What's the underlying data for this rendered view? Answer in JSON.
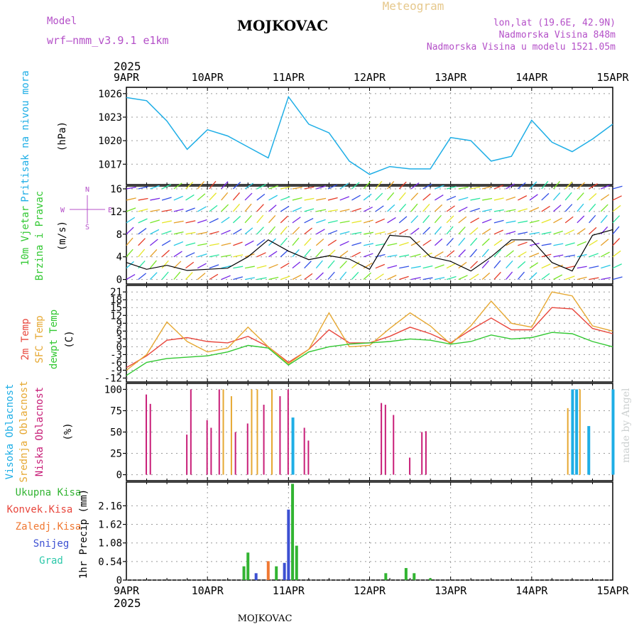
{
  "header": {
    "model_label": "Model",
    "model_name": "wrf—nmm_v3.9.1 e1km",
    "station_title": "MOJKOVAC",
    "meteogram_label": "Meteogram",
    "lonlat": "lon,lat (19.6E, 42.9N)",
    "elevation": "Nadmorska Visina 848m",
    "model_elevation": "Nadmorska Visina u modelu 1521.05m",
    "year": "2025",
    "footer_station": "MOJKOVAC",
    "watermark": "made by Angel"
  },
  "colors": {
    "pressure": "#1eaee6",
    "temp2m": "#e8463c",
    "sfc": "#e6a832",
    "dewpt": "#32c832",
    "high_cloud": "#1eaee6",
    "mid_cloud": "#e6a832",
    "low_cloud": "#c81e78",
    "total_precip": "#32b432",
    "conv_precip": "#e8463c",
    "frz_precip": "#f07832",
    "snow": "#3c50d2",
    "hail": "#2cc8aa",
    "wind_label": "#32c832",
    "compass": "#b450c8"
  },
  "chart_data": [
    {
      "type": "line",
      "panel": "pressure",
      "ylabel_side": "Pritisak na nivou mora",
      "ylabel": "(hPa)",
      "x_ticks": [
        "9APR",
        "10APR",
        "11APR",
        "12APR",
        "13APR",
        "14APR",
        "15APR"
      ],
      "yticks": [
        1017,
        1020,
        1023,
        1026
      ],
      "ylim": [
        1014.4,
        1026.8
      ],
      "series": [
        {
          "x": [
            0,
            0.25,
            0.5,
            0.75,
            1,
            1.25,
            1.5,
            1.75,
            2,
            2.25,
            2.5,
            2.75,
            3,
            3.25,
            3.5,
            3.75,
            4,
            4.25,
            4.5,
            4.75,
            5,
            5.25,
            5.5,
            5.75,
            6
          ],
          "values": [
            1025.5,
            1025.1,
            1022.5,
            1018.9,
            1021.4,
            1020.6,
            1019.2,
            1017.8,
            1025.6,
            1022.1,
            1021,
            1017.4,
            1015.7,
            1016.7,
            1016.4,
            1016.4,
            1020.4,
            1020,
            1017.4,
            1018,
            1022.6,
            1019.8,
            1018.6,
            1020.2,
            1022.1
          ]
        }
      ]
    },
    {
      "type": "line",
      "panel": "wind",
      "ylabel_side_1": "10m Vjetar",
      "ylabel_side_2": "Brzina i Pravac",
      "ylabel": "(m/s)",
      "compass": {
        "n": "N",
        "s": "S",
        "w": "W",
        "e": "E"
      },
      "yticks": [
        0,
        4,
        8,
        12,
        16
      ],
      "ylim": [
        -0.8,
        16.5
      ],
      "series": [
        {
          "x": [
            0,
            0.25,
            0.5,
            0.75,
            1,
            1.25,
            1.5,
            1.75,
            2,
            2.25,
            2.5,
            2.75,
            3,
            3.25,
            3.5,
            3.75,
            4,
            4.25,
            4.5,
            4.75,
            5,
            5.25,
            5.5,
            5.75,
            6
          ],
          "values": [
            3,
            1.8,
            2.5,
            1.6,
            1.8,
            2,
            4,
            7,
            5,
            3.5,
            4.2,
            3.6,
            1.8,
            7.8,
            7.5,
            4,
            3.2,
            1.5,
            4,
            7,
            7,
            3,
            1.5,
            7.8,
            8.8
          ]
        }
      ]
    },
    {
      "type": "line",
      "panel": "temperature",
      "ylabel_side_1": "2m Temp",
      "ylabel_side_2": "SFC Temp",
      "ylabel_side_3": "dewpt Temp",
      "ylabel": "(C)",
      "yticks": [
        -12,
        -9,
        -6,
        -3,
        0,
        3,
        6,
        9,
        12,
        15,
        18,
        21
      ],
      "ylim": [
        -13.5,
        23.5
      ],
      "series": [
        {
          "name": "2m Temp",
          "x": [
            0,
            0.25,
            0.5,
            0.75,
            1,
            1.25,
            1.5,
            1.75,
            2,
            2.25,
            2.5,
            2.75,
            3,
            3.25,
            3.5,
            3.75,
            4,
            4.25,
            4.5,
            4.75,
            5,
            5.25,
            5.5,
            5.75,
            6
          ],
          "values": [
            -8,
            -3.5,
            2.5,
            3.5,
            2,
            1.5,
            4,
            0,
            -6,
            -1,
            6.5,
            1.5,
            1.5,
            4,
            7.5,
            5,
            1.5,
            6.5,
            11,
            6.5,
            6.5,
            15,
            14.5,
            7,
            5
          ]
        },
        {
          "name": "SFC Temp",
          "x": [
            0,
            0.25,
            0.5,
            0.75,
            1,
            1.25,
            1.5,
            1.75,
            2,
            2.25,
            2.5,
            2.75,
            3,
            3.25,
            3.5,
            3.75,
            4,
            4.25,
            4.5,
            4.75,
            5,
            5.25,
            5.5,
            5.75,
            6
          ],
          "values": [
            -9,
            -3,
            9.5,
            2,
            -2,
            -0.5,
            7.5,
            0,
            -6.5,
            -1,
            13,
            0,
            0.5,
            7,
            13,
            8,
            1,
            8,
            17.5,
            9,
            7.5,
            21,
            19.5,
            8,
            6
          ]
        },
        {
          "name": "dewpt Temp",
          "x": [
            0,
            0.25,
            0.5,
            0.75,
            1,
            1.25,
            1.5,
            1.75,
            2,
            2.25,
            2.5,
            2.75,
            3,
            3.25,
            3.5,
            3.75,
            4,
            4.25,
            4.5,
            4.75,
            5,
            5.25,
            5.5,
            5.75,
            6
          ],
          "values": [
            -11,
            -6,
            -4.5,
            -4,
            -3.5,
            -2,
            0.5,
            -0.5,
            -7,
            -2,
            0,
            1,
            1.5,
            2,
            3,
            2.5,
            1,
            2,
            4.5,
            3,
            3.5,
            5.5,
            5,
            2,
            0
          ]
        }
      ]
    },
    {
      "type": "bar",
      "panel": "clouds",
      "ylabel_side_1": "Visoka Oblacnost",
      "ylabel_side_2": "Srednja Oblacnost",
      "ylabel_side_3": "Niska Oblacnost",
      "ylabel": "(%)",
      "yticks": [
        0,
        25,
        50,
        75,
        100
      ],
      "ylim": [
        0,
        100
      ],
      "bars": [
        {
          "x": 0.25,
          "value": 94,
          "kind": "low"
        },
        {
          "x": 0.3,
          "value": 83,
          "kind": "low"
        },
        {
          "x": 0.75,
          "value": 47,
          "kind": "low"
        },
        {
          "x": 0.8,
          "value": 100,
          "kind": "low"
        },
        {
          "x": 1.0,
          "value": 64,
          "kind": "low"
        },
        {
          "x": 1.05,
          "value": 55,
          "kind": "low"
        },
        {
          "x": 1.15,
          "value": 100,
          "kind": "low"
        },
        {
          "x": 1.2,
          "value": 100,
          "kind": "mid"
        },
        {
          "x": 1.3,
          "value": 92,
          "kind": "mid"
        },
        {
          "x": 1.35,
          "value": 50,
          "kind": "low"
        },
        {
          "x": 1.5,
          "value": 60,
          "kind": "low"
        },
        {
          "x": 1.55,
          "value": 100,
          "kind": "mid"
        },
        {
          "x": 1.62,
          "value": 100,
          "kind": "mid"
        },
        {
          "x": 1.7,
          "value": 82,
          "kind": "low"
        },
        {
          "x": 1.8,
          "value": 100,
          "kind": "mid"
        },
        {
          "x": 1.9,
          "value": 92,
          "kind": "low"
        },
        {
          "x": 2.0,
          "value": 100,
          "kind": "low"
        },
        {
          "x": 2.05,
          "value": 67,
          "kind": "high"
        },
        {
          "x": 2.2,
          "value": 55,
          "kind": "low"
        },
        {
          "x": 2.25,
          "value": 40,
          "kind": "low"
        },
        {
          "x": 3.15,
          "value": 84,
          "kind": "low"
        },
        {
          "x": 3.2,
          "value": 82,
          "kind": "low"
        },
        {
          "x": 3.3,
          "value": 70,
          "kind": "low"
        },
        {
          "x": 3.5,
          "value": 20,
          "kind": "low"
        },
        {
          "x": 3.65,
          "value": 50,
          "kind": "low"
        },
        {
          "x": 3.7,
          "value": 51,
          "kind": "low"
        },
        {
          "x": 5.45,
          "value": 78,
          "kind": "mid"
        },
        {
          "x": 5.5,
          "value": 100,
          "kind": "high"
        },
        {
          "x": 5.55,
          "value": 100,
          "kind": "high"
        },
        {
          "x": 5.6,
          "value": 100,
          "kind": "mid"
        },
        {
          "x": 5.7,
          "value": 57,
          "kind": "high"
        },
        {
          "x": 6.0,
          "value": 100,
          "kind": "high"
        }
      ]
    },
    {
      "type": "bar",
      "panel": "precipitation",
      "legend": [
        "Ukupna Kisa",
        "Konvek.Kisa",
        "Zaledj.Kisa",
        "Snijeg",
        "Grad"
      ],
      "ylabel": "1hr Precip (mm)",
      "yticks": [
        0,
        0.54,
        1.08,
        1.62,
        2.16
      ],
      "ylim": [
        0,
        2.8
      ],
      "bars": [
        {
          "x": 1.45,
          "value": 0.4,
          "kind": "total"
        },
        {
          "x": 1.5,
          "value": 0.8,
          "kind": "total"
        },
        {
          "x": 1.6,
          "value": 0.2,
          "kind": "snow"
        },
        {
          "x": 1.75,
          "value": 0.55,
          "kind": "frz"
        },
        {
          "x": 1.85,
          "value": 0.4,
          "kind": "total"
        },
        {
          "x": 1.95,
          "value": 0.5,
          "kind": "snow"
        },
        {
          "x": 2.0,
          "value": 2.05,
          "kind": "snow"
        },
        {
          "x": 2.05,
          "value": 2.8,
          "kind": "total"
        },
        {
          "x": 2.1,
          "value": 1.0,
          "kind": "total"
        },
        {
          "x": 3.2,
          "value": 0.2,
          "kind": "total"
        },
        {
          "x": 3.45,
          "value": 0.35,
          "kind": "total"
        },
        {
          "x": 3.55,
          "value": 0.2,
          "kind": "total"
        },
        {
          "x": 3.75,
          "value": 0.05,
          "kind": "total"
        }
      ]
    }
  ]
}
